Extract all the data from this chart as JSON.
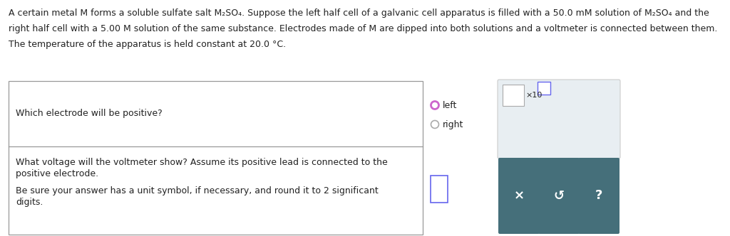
{
  "bg_color": "#ffffff",
  "text_color": "#222222",
  "paragraph_line1": "A certain metal M forms a soluble sulfate salt M₂SO₄. Suppose the left half cell of a galvanic cell apparatus is filled with a 50.0 mM solution of M₂SO₄ and the",
  "paragraph_line2": "right half cell with a 5.00 M solution of the same substance. Electrodes made of M are dipped into both solutions and a voltmeter is connected between them.",
  "paragraph_line3": "The temperature of the apparatus is held constant at 20.0 °C.",
  "q1_text": "Which electrode will be positive?",
  "q1_opt1": "left",
  "q1_opt2": "right",
  "q2_line1": "What voltage will the voltmeter show? Assume its positive lead is connected to the",
  "q2_line2": "positive electrode.",
  "q2_line3": "Be sure your answer has a unit symbol, if necessary, and round it to 2 significant",
  "q2_line4": "digits.",
  "teal_color": "#456f7a",
  "radio_selected_color": "#cc66cc",
  "radio_unselected_color": "#aaaaaa",
  "input_border_color": "#6666ee",
  "x10_box_color": "#e8eef2",
  "table_border_color": "#999999"
}
